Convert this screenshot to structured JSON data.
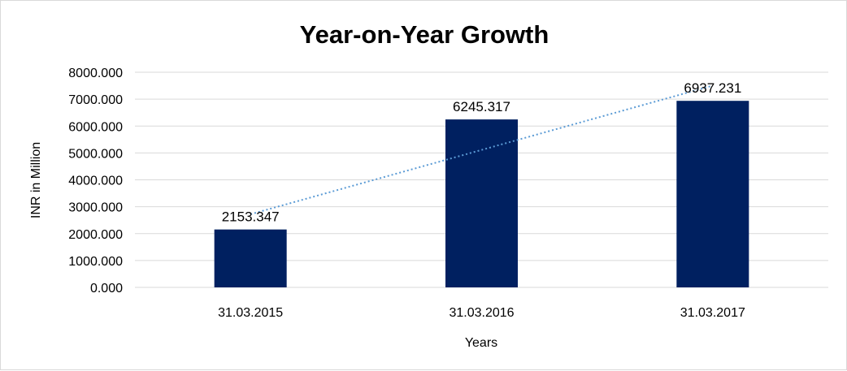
{
  "chart_data": {
    "type": "bar",
    "title": "Year-on-Year Growth",
    "xlabel": "Years",
    "ylabel": "INR in Million",
    "categories": [
      "31.03.2015",
      "31.03.2016",
      "31.03.2017"
    ],
    "values": [
      2153.347,
      6245.317,
      6937.231
    ],
    "value_labels": [
      "2153.347",
      "6245.317",
      "6937.231"
    ],
    "ylim": [
      0,
      8000
    ],
    "yticks": [
      "0.000",
      "1000.000",
      "2000.000",
      "3000.000",
      "4000.000",
      "5000.000",
      "6000.000",
      "7000.000",
      "8000.000"
    ],
    "grid": true,
    "legend": "none",
    "trendline": {
      "type": "linear",
      "style": "dotted",
      "color": "#5b9bd5"
    },
    "bar_color": "#002060",
    "gridline_color": "#d9d9d9"
  }
}
